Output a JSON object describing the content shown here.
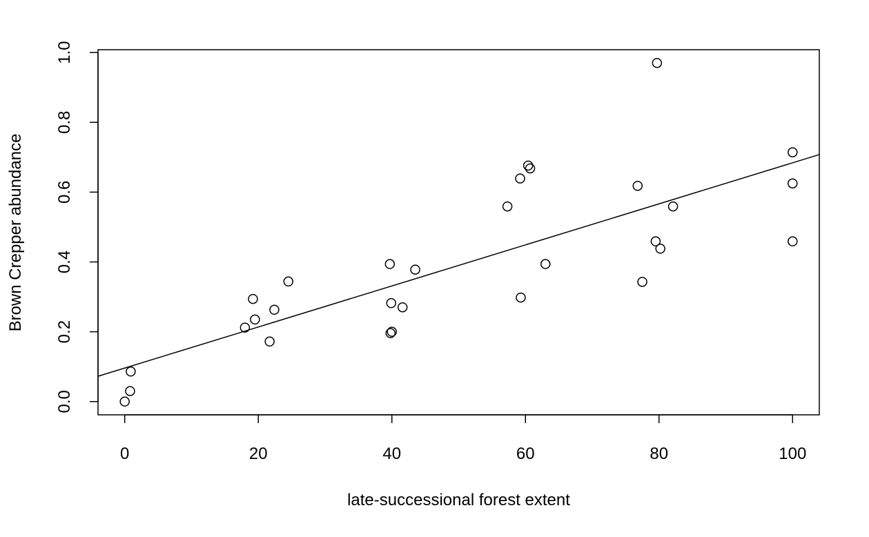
{
  "chart_data": {
    "type": "scatter",
    "title": "",
    "xlabel": "late-successional forest extent",
    "ylabel": "Brown Crepper abundance",
    "xlim": [
      -4,
      104
    ],
    "ylim": [
      -0.038,
      1.008
    ],
    "x_ticks": [
      0,
      20,
      40,
      60,
      80,
      100
    ],
    "y_ticks": [
      0.0,
      0.2,
      0.4,
      0.6,
      0.8,
      1.0
    ],
    "x_tick_labels": [
      "0",
      "20",
      "40",
      "60",
      "80",
      "100"
    ],
    "y_tick_labels": [
      "0.0",
      "0.2",
      "0.4",
      "0.6",
      "0.8",
      "1.0"
    ],
    "grid": false,
    "series": [
      {
        "name": "observations",
        "marker": "open-circle",
        "points": [
          {
            "x": 0,
            "y": 0.0
          },
          {
            "x": 0.8,
            "y": 0.03
          },
          {
            "x": 0.9,
            "y": 0.086
          },
          {
            "x": 18,
            "y": 0.212
          },
          {
            "x": 19.2,
            "y": 0.294
          },
          {
            "x": 19.5,
            "y": 0.235
          },
          {
            "x": 21.7,
            "y": 0.172
          },
          {
            "x": 22.4,
            "y": 0.263
          },
          {
            "x": 24.5,
            "y": 0.344
          },
          {
            "x": 39.7,
            "y": 0.394
          },
          {
            "x": 39.8,
            "y": 0.196
          },
          {
            "x": 39.9,
            "y": 0.282
          },
          {
            "x": 40,
            "y": 0.2
          },
          {
            "x": 41.6,
            "y": 0.27
          },
          {
            "x": 43.5,
            "y": 0.378
          },
          {
            "x": 57.3,
            "y": 0.559
          },
          {
            "x": 59.2,
            "y": 0.639
          },
          {
            "x": 59.3,
            "y": 0.298
          },
          {
            "x": 60.4,
            "y": 0.676
          },
          {
            "x": 60.7,
            "y": 0.668
          },
          {
            "x": 63,
            "y": 0.394
          },
          {
            "x": 76.8,
            "y": 0.618
          },
          {
            "x": 77.5,
            "y": 0.343
          },
          {
            "x": 79.5,
            "y": 0.459
          },
          {
            "x": 79.7,
            "y": 0.97
          },
          {
            "x": 80.2,
            "y": 0.438
          },
          {
            "x": 82.1,
            "y": 0.559
          },
          {
            "x": 100,
            "y": 0.714
          },
          {
            "x": 100,
            "y": 0.625
          },
          {
            "x": 100,
            "y": 0.459
          }
        ]
      }
    ],
    "fit_line": {
      "name": "regression line",
      "intercept": 0.096,
      "slope": 0.00588
    }
  }
}
